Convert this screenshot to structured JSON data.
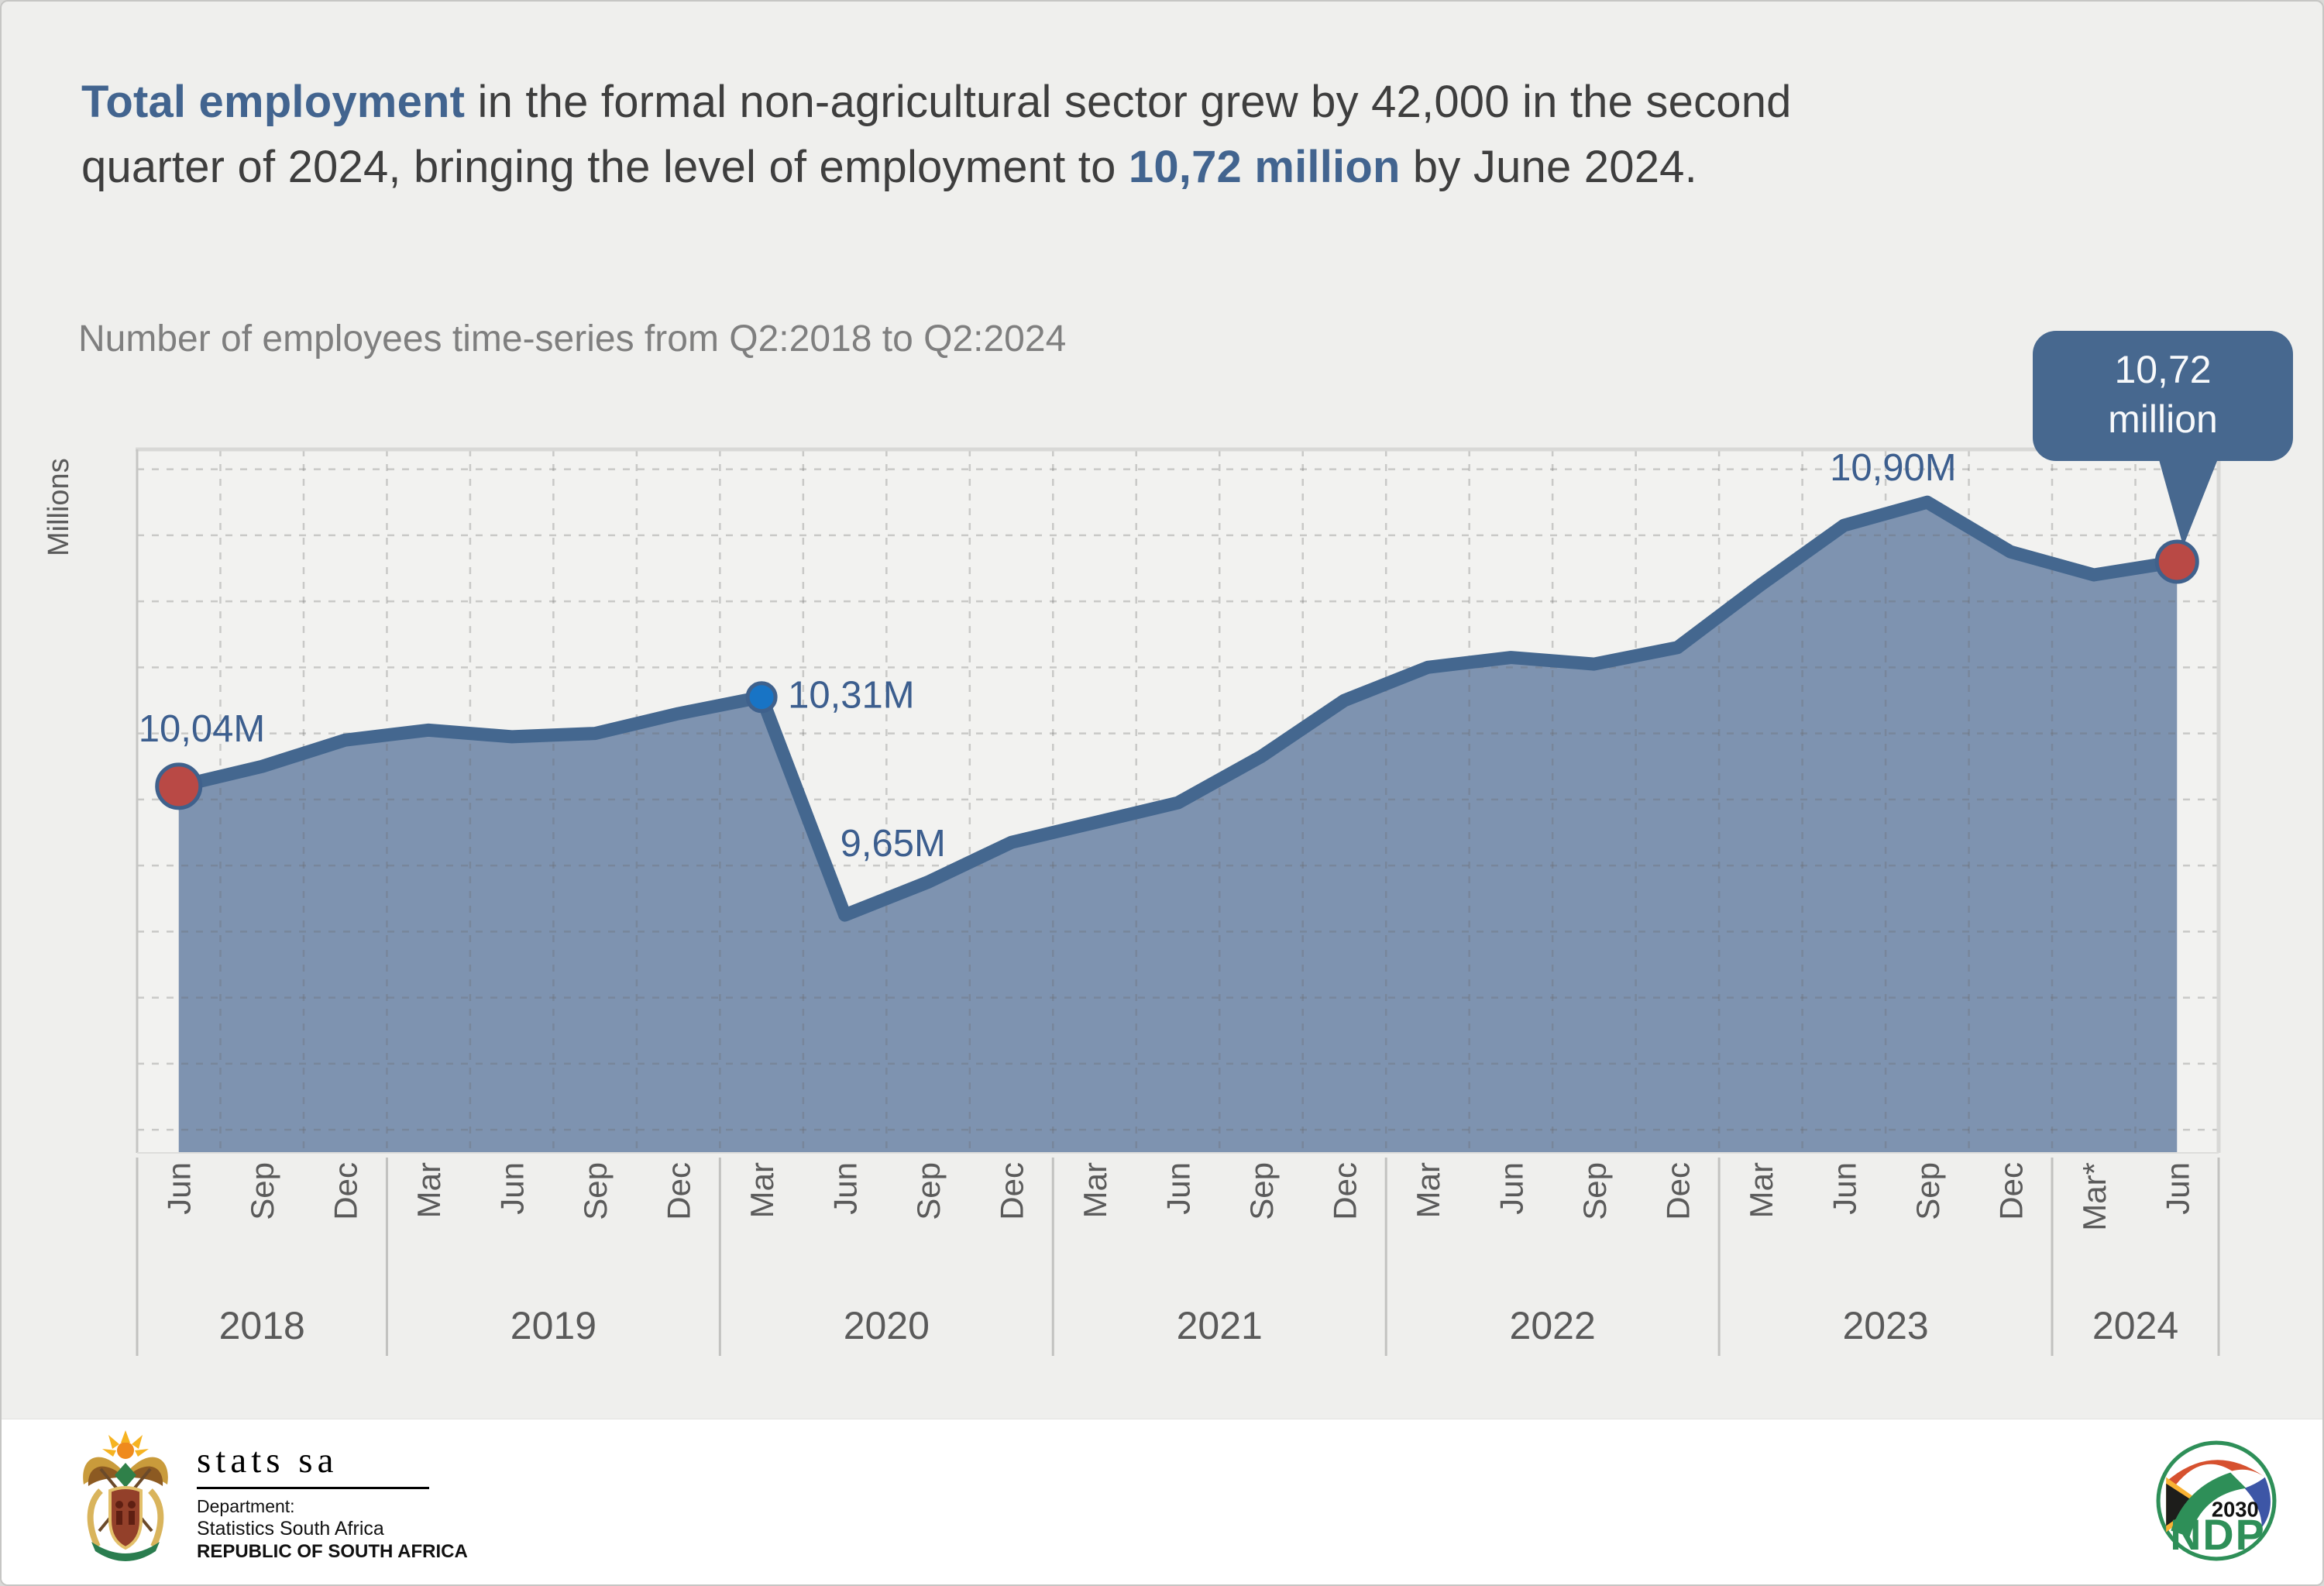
{
  "headline": {
    "bold1": "Total employment",
    "rest1": " in the formal non-agricultural sector grew by 42,000 in the second",
    "rest2": "quarter of 2024, bringing the level of employment to ",
    "bold2": "10,72 million",
    "rest3": " by June 2024."
  },
  "subtitle": "Number of employees time-series from Q2:2018 to Q2:2024",
  "chart_data": {
    "type": "area",
    "title": "Number of employees time-series from Q2:2018 to Q2:2024",
    "xlabel": "",
    "ylabel": "Millions",
    "unit": "millions of employees",
    "categories": [
      "Jun",
      "Sep",
      "Dec",
      "Mar",
      "Jun",
      "Sep",
      "Dec",
      "Mar",
      "Jun",
      "Sep",
      "Dec",
      "Mar",
      "Jun",
      "Sep",
      "Dec",
      "Mar",
      "Jun",
      "Sep",
      "Dec",
      "Mar",
      "Jun",
      "Sep",
      "Dec",
      "Mar*",
      "Jun"
    ],
    "year_groups": [
      {
        "label": "2018",
        "count": 3
      },
      {
        "label": "2019",
        "count": 4
      },
      {
        "label": "2020",
        "count": 4
      },
      {
        "label": "2021",
        "count": 4
      },
      {
        "label": "2022",
        "count": 4
      },
      {
        "label": "2023",
        "count": 4
      },
      {
        "label": "2024",
        "count": 2
      }
    ],
    "values": [
      10.04,
      10.1,
      10.18,
      10.21,
      10.19,
      10.2,
      10.26,
      10.31,
      9.65,
      9.75,
      9.87,
      9.93,
      9.99,
      10.13,
      10.3,
      10.4,
      10.43,
      10.41,
      10.46,
      10.65,
      10.83,
      10.9,
      10.75,
      10.68,
      10.72
    ],
    "ylim": [
      8.93,
      11.06
    ],
    "grid": {
      "y_start": 9.0,
      "y_end": 11.0,
      "y_step": 0.2,
      "x": "category-boundaries",
      "style": "dashed"
    },
    "legend": false,
    "annotations": [
      {
        "index": 0,
        "label": "10,04M"
      },
      {
        "index": 7,
        "label": "10,31M"
      },
      {
        "index": 8,
        "label": "9,65M"
      },
      {
        "index": 21,
        "label": "10,90M"
      }
    ],
    "markers": [
      {
        "index": 0,
        "color": "red",
        "r": 28
      },
      {
        "index": 7,
        "color": "blue",
        "r": 18
      },
      {
        "index": 24,
        "color": "red",
        "r": 26
      }
    ],
    "callout": {
      "index": 24,
      "lines": [
        "10,72",
        "million"
      ]
    },
    "colors": {
      "line": "#44678f",
      "area": "#7e93b0",
      "marker_red": "#b94945",
      "marker_blue": "#1874c5",
      "marker_rim": "#3f618c",
      "label": "#3c5e8e",
      "callout_bg": "#47688f",
      "callout_text": "#f7f9fb",
      "axis_text": "#5a5a5a",
      "gridline": "rgba(105,105,105,0.30)"
    }
  },
  "footer": {
    "statssa": {
      "logotype": "stats sa",
      "dept_line1": "Department:",
      "dept_line2": "Statistics South Africa",
      "dept_line3": "REPUBLIC OF SOUTH AFRICA"
    },
    "ndp": {
      "year": "2030",
      "name": "NDP"
    }
  }
}
